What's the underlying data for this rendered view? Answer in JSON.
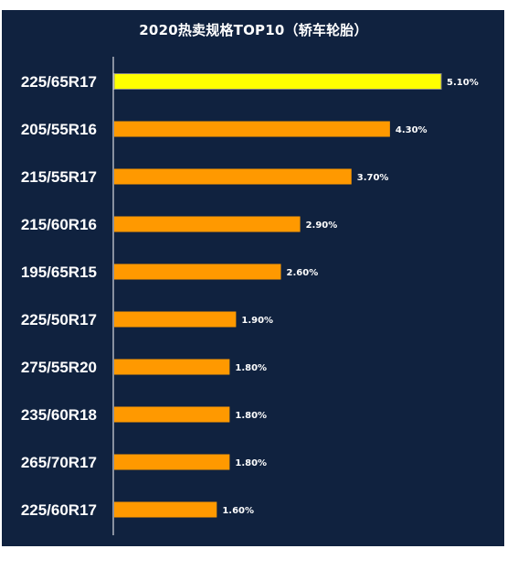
{
  "chart_data": {
    "type": "bar",
    "orientation": "horizontal",
    "title": "2020热卖规格TOP10（轿车轮胎）",
    "xlabel": "",
    "ylabel": "",
    "xlim": [
      0,
      5.6
    ],
    "grid": false,
    "categories": [
      "225/65R17",
      "205/55R16",
      "215/55R17",
      "215/60R16",
      "195/65R15",
      "225/50R17",
      "275/55R20",
      "235/60R18",
      "265/70R17",
      "225/60R17"
    ],
    "values": [
      5.1,
      4.3,
      3.7,
      2.9,
      2.6,
      1.9,
      1.8,
      1.8,
      1.8,
      1.6
    ],
    "data_labels": [
      "5.10%",
      "4.30%",
      "3.70%",
      "2.90%",
      "2.60%",
      "1.90%",
      "1.80%",
      "1.80%",
      "1.80%",
      "1.60%"
    ],
    "highlight_index": 0
  },
  "colors": {
    "background": "#10223f",
    "bar": "#ff9900",
    "highlight_bar": "#ffff00",
    "bar_outline": "#888888",
    "text": "#ffffff",
    "axis": "#ffffff"
  }
}
